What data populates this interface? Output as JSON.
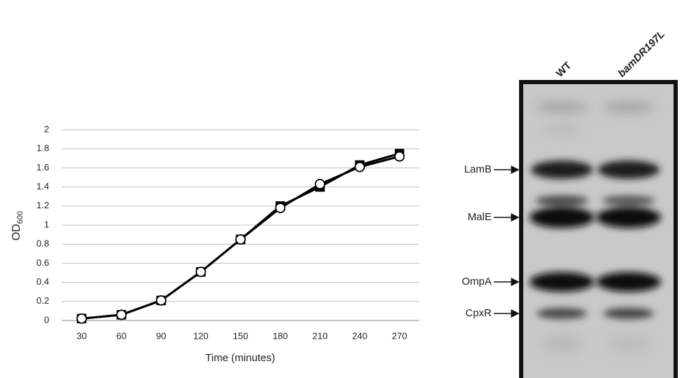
{
  "chart_data": {
    "type": "line",
    "categories": [
      "30",
      "60",
      "90",
      "120",
      "150",
      "180",
      "210",
      "240",
      "270"
    ],
    "series": [
      {
        "color": "#000000",
        "marker": "square",
        "marker_fill": "#000000",
        "values": [
          0.02,
          0.06,
          0.21,
          0.51,
          0.85,
          1.2,
          1.4,
          1.63,
          1.75
        ]
      },
      {
        "color": "#000000",
        "marker": "circle",
        "marker_fill": "#ffffff",
        "values": [
          0.02,
          0.06,
          0.21,
          0.51,
          0.85,
          1.18,
          1.43,
          1.61,
          1.72
        ]
      }
    ],
    "ylim": [
      0,
      2
    ],
    "yticks": [
      0,
      0.2,
      0.4,
      0.6,
      0.8,
      1,
      1.2,
      1.4,
      1.6,
      1.8,
      2
    ],
    "grid": true,
    "xlabel": "Time (minutes)",
    "ylabel": "OD",
    "ylabel_subscript": "600"
  },
  "gel": {
    "lanes": [
      "WT",
      "bamDR197L"
    ],
    "bands": [
      "LamB",
      "MalE",
      "OmpA",
      "CpxR"
    ]
  }
}
